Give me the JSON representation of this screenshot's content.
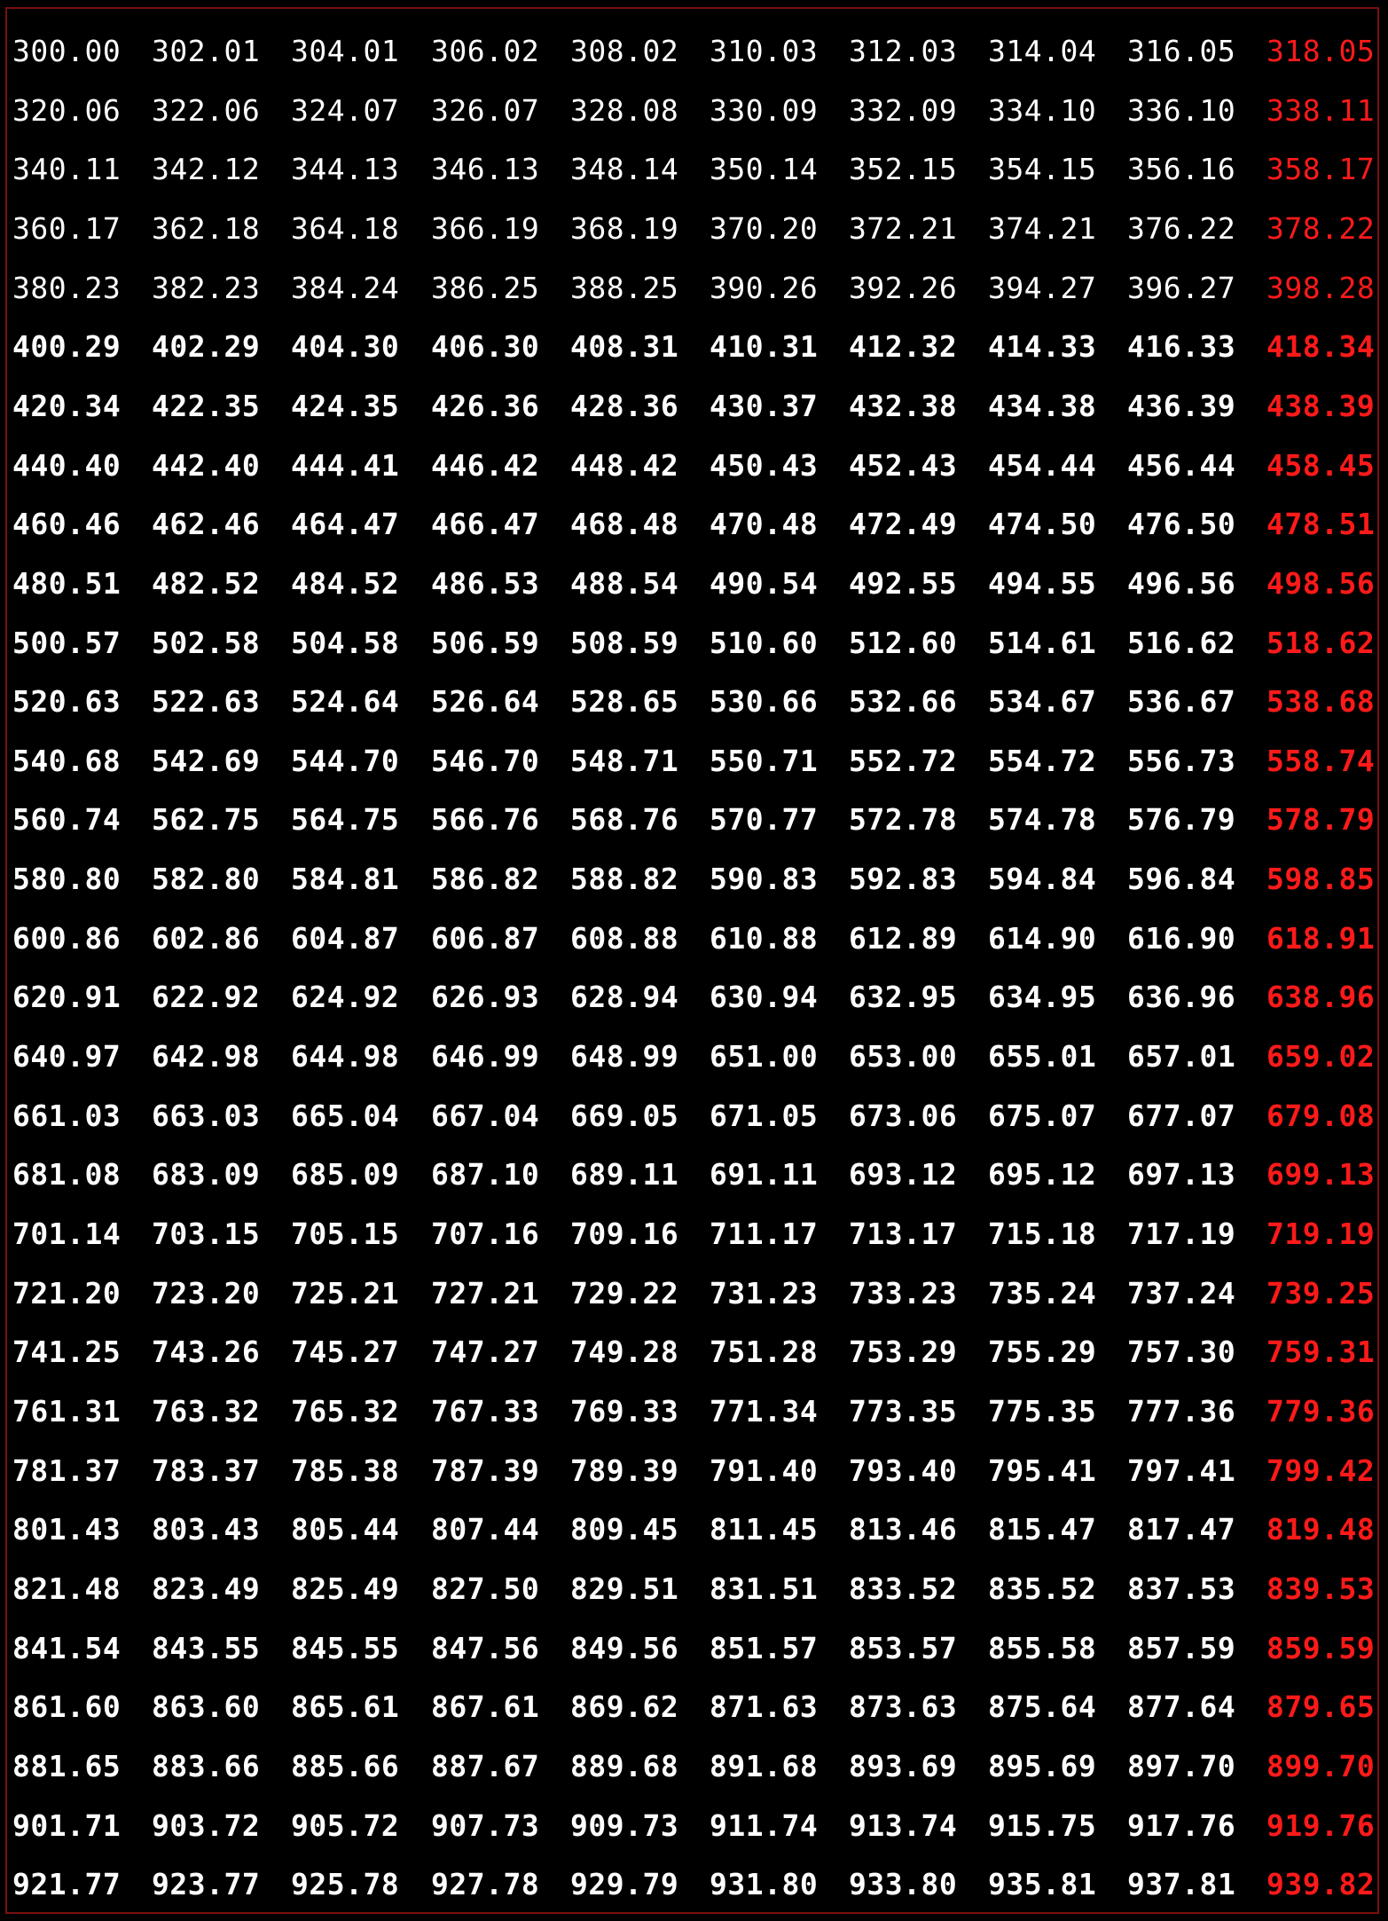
{
  "table": {
    "highlight_color": "#ff1a1a",
    "text_color": "#ffffff",
    "background_color": "#000000",
    "highlighted_column": 9,
    "rows": [
      [
        "300.00",
        "302.01",
        "304.01",
        "306.02",
        "308.02",
        "310.03",
        "312.03",
        "314.04",
        "316.05",
        "318.05"
      ],
      [
        "320.06",
        "322.06",
        "324.07",
        "326.07",
        "328.08",
        "330.09",
        "332.09",
        "334.10",
        "336.10",
        "338.11"
      ],
      [
        "340.11",
        "342.12",
        "344.13",
        "346.13",
        "348.14",
        "350.14",
        "352.15",
        "354.15",
        "356.16",
        "358.17"
      ],
      [
        "360.17",
        "362.18",
        "364.18",
        "366.19",
        "368.19",
        "370.20",
        "372.21",
        "374.21",
        "376.22",
        "378.22"
      ],
      [
        "380.23",
        "382.23",
        "384.24",
        "386.25",
        "388.25",
        "390.26",
        "392.26",
        "394.27",
        "396.27",
        "398.28"
      ],
      [
        "400.29",
        "402.29",
        "404.30",
        "406.30",
        "408.31",
        "410.31",
        "412.32",
        "414.33",
        "416.33",
        "418.34"
      ],
      [
        "420.34",
        "422.35",
        "424.35",
        "426.36",
        "428.36",
        "430.37",
        "432.38",
        "434.38",
        "436.39",
        "438.39"
      ],
      [
        "440.40",
        "442.40",
        "444.41",
        "446.42",
        "448.42",
        "450.43",
        "452.43",
        "454.44",
        "456.44",
        "458.45"
      ],
      [
        "460.46",
        "462.46",
        "464.47",
        "466.47",
        "468.48",
        "470.48",
        "472.49",
        "474.50",
        "476.50",
        "478.51"
      ],
      [
        "480.51",
        "482.52",
        "484.52",
        "486.53",
        "488.54",
        "490.54",
        "492.55",
        "494.55",
        "496.56",
        "498.56"
      ],
      [
        "500.57",
        "502.58",
        "504.58",
        "506.59",
        "508.59",
        "510.60",
        "512.60",
        "514.61",
        "516.62",
        "518.62"
      ],
      [
        "520.63",
        "522.63",
        "524.64",
        "526.64",
        "528.65",
        "530.66",
        "532.66",
        "534.67",
        "536.67",
        "538.68"
      ],
      [
        "540.68",
        "542.69",
        "544.70",
        "546.70",
        "548.71",
        "550.71",
        "552.72",
        "554.72",
        "556.73",
        "558.74"
      ],
      [
        "560.74",
        "562.75",
        "564.75",
        "566.76",
        "568.76",
        "570.77",
        "572.78",
        "574.78",
        "576.79",
        "578.79"
      ],
      [
        "580.80",
        "582.80",
        "584.81",
        "586.82",
        "588.82",
        "590.83",
        "592.83",
        "594.84",
        "596.84",
        "598.85"
      ],
      [
        "600.86",
        "602.86",
        "604.87",
        "606.87",
        "608.88",
        "610.88",
        "612.89",
        "614.90",
        "616.90",
        "618.91"
      ],
      [
        "620.91",
        "622.92",
        "624.92",
        "626.93",
        "628.94",
        "630.94",
        "632.95",
        "634.95",
        "636.96",
        "638.96"
      ],
      [
        "640.97",
        "642.98",
        "644.98",
        "646.99",
        "648.99",
        "651.00",
        "653.00",
        "655.01",
        "657.01",
        "659.02"
      ],
      [
        "661.03",
        "663.03",
        "665.04",
        "667.04",
        "669.05",
        "671.05",
        "673.06",
        "675.07",
        "677.07",
        "679.08"
      ],
      [
        "681.08",
        "683.09",
        "685.09",
        "687.10",
        "689.11",
        "691.11",
        "693.12",
        "695.12",
        "697.13",
        "699.13"
      ],
      [
        "701.14",
        "703.15",
        "705.15",
        "707.16",
        "709.16",
        "711.17",
        "713.17",
        "715.18",
        "717.19",
        "719.19"
      ],
      [
        "721.20",
        "723.20",
        "725.21",
        "727.21",
        "729.22",
        "731.23",
        "733.23",
        "735.24",
        "737.24",
        "739.25"
      ],
      [
        "741.25",
        "743.26",
        "745.27",
        "747.27",
        "749.28",
        "751.28",
        "753.29",
        "755.29",
        "757.30",
        "759.31"
      ],
      [
        "761.31",
        "763.32",
        "765.32",
        "767.33",
        "769.33",
        "771.34",
        "773.35",
        "775.35",
        "777.36",
        "779.36"
      ],
      [
        "781.37",
        "783.37",
        "785.38",
        "787.39",
        "789.39",
        "791.40",
        "793.40",
        "795.41",
        "797.41",
        "799.42"
      ],
      [
        "801.43",
        "803.43",
        "805.44",
        "807.44",
        "809.45",
        "811.45",
        "813.46",
        "815.47",
        "817.47",
        "819.48"
      ],
      [
        "821.48",
        "823.49",
        "825.49",
        "827.50",
        "829.51",
        "831.51",
        "833.52",
        "835.52",
        "837.53",
        "839.53"
      ],
      [
        "841.54",
        "843.55",
        "845.55",
        "847.56",
        "849.56",
        "851.57",
        "853.57",
        "855.58",
        "857.59",
        "859.59"
      ],
      [
        "861.60",
        "863.60",
        "865.61",
        "867.61",
        "869.62",
        "871.63",
        "873.63",
        "875.64",
        "877.64",
        "879.65"
      ],
      [
        "881.65",
        "883.66",
        "885.66",
        "887.67",
        "889.68",
        "891.68",
        "893.69",
        "895.69",
        "897.70",
        "899.70"
      ],
      [
        "901.71",
        "903.72",
        "905.72",
        "907.73",
        "909.73",
        "911.74",
        "913.74",
        "915.75",
        "917.76",
        "919.76"
      ],
      [
        "921.77",
        "923.77",
        "925.78",
        "927.78",
        "929.79",
        "931.80",
        "933.80",
        "935.81",
        "937.81",
        "939.82"
      ]
    ]
  }
}
